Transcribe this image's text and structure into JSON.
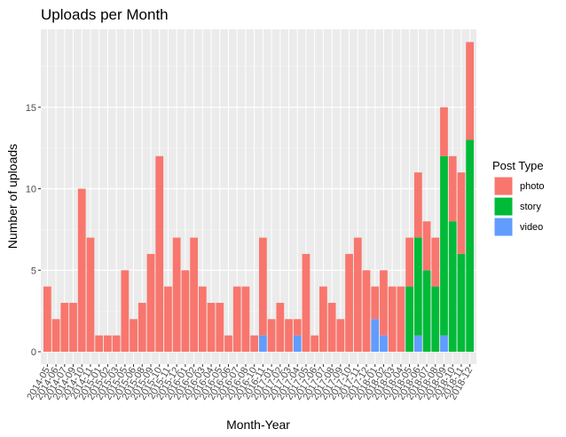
{
  "chart_data": {
    "type": "bar",
    "stacked": true,
    "title": "Uploads per Month",
    "xlabel": "Month-Year",
    "ylabel": "Number of uploads",
    "ylim": [
      0,
      20
    ],
    "yticks": [
      0,
      5,
      10,
      15
    ],
    "grid": true,
    "legend": {
      "title": "Post Type",
      "position": "right"
    },
    "categories": [
      "2014-05",
      "2014-06",
      "2014-07",
      "2014-09",
      "2014-10",
      "2014-11",
      "2015-01",
      "2015-02",
      "2015-03",
      "2015-05",
      "2015-06",
      "2015-08",
      "2015-09",
      "2015-10",
      "2015-11",
      "2015-12",
      "2016-01",
      "2016-02",
      "2016-03",
      "2016-04",
      "2016-05",
      "2016-06",
      "2016-07",
      "2016-08",
      "2016-10",
      "2016-11",
      "2017-01",
      "2017-02",
      "2017-03",
      "2017-04",
      "2017-05",
      "2017-06",
      "2017-07",
      "2017-08",
      "2017-09",
      "2017-10",
      "2017-11",
      "2017-12",
      "2018-01",
      "2018-02",
      "2018-03",
      "2018-04",
      "2018-05",
      "2018-06",
      "2018-07",
      "2018-08",
      "2018-09",
      "2018-10",
      "2018-11",
      "2018-12"
    ],
    "series": [
      {
        "name": "video",
        "color": "#619cff",
        "values": [
          0,
          0,
          0,
          0,
          0,
          0,
          0,
          0,
          0,
          0,
          0,
          0,
          0,
          0,
          0,
          0,
          0,
          0,
          0,
          0,
          0,
          0,
          0,
          0,
          0,
          1,
          0,
          0,
          0,
          1,
          0,
          0,
          0,
          0,
          0,
          0,
          0,
          0,
          2,
          1,
          0,
          0,
          0,
          1,
          0,
          0,
          1,
          0,
          0,
          0
        ]
      },
      {
        "name": "story",
        "color": "#00ba38",
        "values": [
          0,
          0,
          0,
          0,
          0,
          0,
          0,
          0,
          0,
          0,
          0,
          0,
          0,
          0,
          0,
          0,
          0,
          0,
          0,
          0,
          0,
          0,
          0,
          0,
          0,
          0,
          0,
          0,
          0,
          0,
          0,
          0,
          0,
          0,
          0,
          0,
          0,
          0,
          0,
          0,
          0,
          0,
          4,
          6,
          5,
          4,
          11,
          8,
          6,
          13
        ]
      },
      {
        "name": "photo",
        "color": "#f8766d",
        "values": [
          4,
          2,
          3,
          3,
          10,
          7,
          1,
          1,
          1,
          5,
          2,
          3,
          6,
          12,
          4,
          7,
          5,
          7,
          4,
          3,
          3,
          1,
          4,
          4,
          1,
          6,
          2,
          3,
          2,
          1,
          6,
          1,
          4,
          3,
          2,
          6,
          7,
          5,
          2,
          4,
          4,
          4,
          3,
          4,
          3,
          3,
          3,
          4,
          5,
          6
        ]
      }
    ],
    "legend_order": [
      "photo",
      "story",
      "video"
    ]
  }
}
